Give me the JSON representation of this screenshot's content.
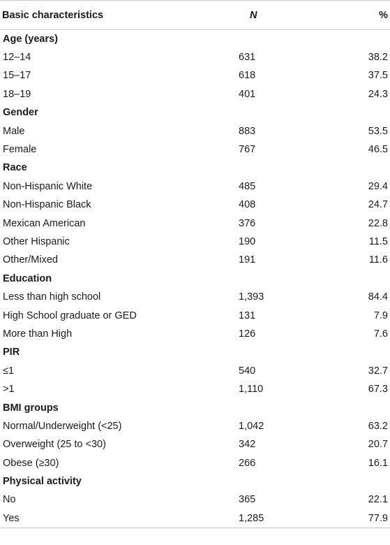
{
  "header": {
    "characteristics": "Basic characteristics",
    "n": "N",
    "pct": "%"
  },
  "sections": [
    {
      "title": "Age (years)",
      "rows": [
        {
          "label": "12–14",
          "n": "631",
          "pct": "38.2"
        },
        {
          "label": "15–17",
          "n": "618",
          "pct": "37.5"
        },
        {
          "label": "18–19",
          "n": "401",
          "pct": "24.3"
        }
      ]
    },
    {
      "title": "Gender",
      "rows": [
        {
          "label": "Male",
          "n": "883",
          "pct": "53.5"
        },
        {
          "label": "Female",
          "n": "767",
          "pct": "46.5"
        }
      ]
    },
    {
      "title": "Race",
      "rows": [
        {
          "label": "Non-Hispanic White",
          "n": "485",
          "pct": "29.4"
        },
        {
          "label": "Non-Hispanic Black",
          "n": "408",
          "pct": "24.7"
        },
        {
          "label": "Mexican American",
          "n": "376",
          "pct": "22.8"
        },
        {
          "label": "Other Hispanic",
          "n": "190",
          "pct": "11.5"
        },
        {
          "label": "Other/Mixed",
          "n": "191",
          "pct": "11.6"
        }
      ]
    },
    {
      "title": "Education",
      "rows": [
        {
          "label": "Less than high school",
          "n": "1,393",
          "pct": "84.4"
        },
        {
          "label": "High School graduate or GED",
          "n": "131",
          "pct": "7.9"
        },
        {
          "label": "More than High",
          "n": "126",
          "pct": "7.6"
        }
      ]
    },
    {
      "title": "PIR",
      "rows": [
        {
          "label": "≤1",
          "n": "540",
          "pct": "32.7"
        },
        {
          "label": ">1",
          "n": "1,110",
          "pct": "67.3"
        }
      ]
    },
    {
      "title": "BMI groups",
      "rows": [
        {
          "label": "Normal/Underweight (<25)",
          "n": "1,042",
          "pct": "63.2"
        },
        {
          "label": "Overweight (25 to <30)",
          "n": "342",
          "pct": "20.7"
        },
        {
          "label": "Obese (≥30)",
          "n": "266",
          "pct": "16.1"
        }
      ]
    },
    {
      "title": "Physical activity",
      "rows": [
        {
          "label": "No",
          "n": "365",
          "pct": "22.1"
        },
        {
          "label": "Yes",
          "n": "1,285",
          "pct": "77.9"
        }
      ]
    }
  ]
}
